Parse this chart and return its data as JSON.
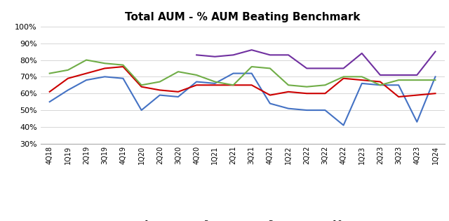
{
  "title": "Total AUM - % AUM Beating Benchmark",
  "categories": [
    "4Q18",
    "1Q19",
    "2Q19",
    "3Q19",
    "4Q19",
    "1Q20",
    "2Q20",
    "3Q20",
    "4Q20",
    "1Q21",
    "2Q21",
    "3Q21",
    "4Q21",
    "1Q22",
    "2Q22",
    "3Q22",
    "4Q22",
    "1Q23",
    "2Q23",
    "3Q23",
    "4Q23",
    "1Q24"
  ],
  "series": {
    "1 year": [
      0.55,
      0.62,
      0.68,
      0.7,
      0.69,
      0.5,
      0.59,
      0.58,
      0.67,
      0.66,
      0.72,
      0.72,
      0.54,
      0.51,
      0.5,
      0.5,
      0.41,
      0.66,
      0.65,
      0.65,
      0.43,
      0.7
    ],
    "3 years": [
      0.61,
      0.69,
      0.72,
      0.75,
      0.76,
      0.64,
      0.62,
      0.61,
      0.65,
      0.65,
      0.65,
      0.65,
      0.59,
      0.61,
      0.6,
      0.6,
      0.69,
      0.68,
      0.67,
      0.58,
      0.59,
      0.6
    ],
    "5 years": [
      0.72,
      0.74,
      0.8,
      0.78,
      0.77,
      0.65,
      0.67,
      0.73,
      0.71,
      0.67,
      0.65,
      0.76,
      0.75,
      0.65,
      0.64,
      0.65,
      0.7,
      0.7,
      0.65,
      0.68,
      0.68,
      0.68
    ],
    "10 years": [
      null,
      null,
      null,
      null,
      null,
      null,
      null,
      null,
      0.83,
      0.82,
      0.83,
      0.86,
      0.83,
      0.83,
      0.75,
      0.75,
      0.75,
      0.84,
      0.71,
      0.71,
      0.71,
      0.85
    ]
  },
  "colors": {
    "1 year": "#4472C4",
    "3 years": "#CC0000",
    "5 years": "#70AD47",
    "10 years": "#7030A0"
  },
  "ylim": [
    0.3,
    1.0
  ],
  "yticks": [
    0.3,
    0.4,
    0.5,
    0.6,
    0.7,
    0.8,
    0.9,
    1.0
  ],
  "background_color": "#FFFFFF",
  "title_fontsize": 11,
  "line_width": 1.5,
  "tick_fontsize": 7,
  "ytick_fontsize": 8,
  "legend_fontsize": 8
}
